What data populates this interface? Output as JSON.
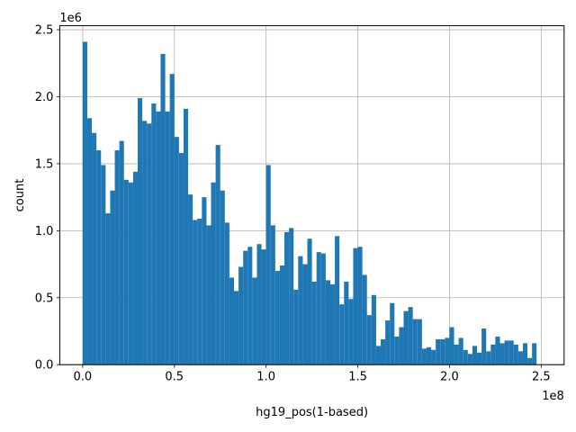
{
  "chart_data": {
    "type": "bar",
    "subtype": "histogram",
    "xlabel": "hg19_pos(1-based)",
    "ylabel": "count",
    "x_offset_label": "1e8",
    "y_offset_label": "1e6",
    "xlim": [
      -12500000,
      262500000
    ],
    "ylim": [
      0,
      2530000
    ],
    "grid": true,
    "bar_color": "#1f77b4",
    "bin_start": 0,
    "bin_width": 2500000,
    "xticks": [
      0,
      50000000,
      100000000,
      150000000,
      200000000,
      250000000
    ],
    "xtick_labels": [
      "0.0",
      "0.5",
      "1.0",
      "1.5",
      "2.0",
      "2.5"
    ],
    "yticks": [
      0,
      500000,
      1000000,
      1500000,
      2000000,
      2500000
    ],
    "ytick_labels": [
      "0.0",
      "0.5",
      "1.0",
      "1.5",
      "2.0",
      "2.5"
    ],
    "counts": [
      2410000,
      1840000,
      1730000,
      1600000,
      1490000,
      1130000,
      1300000,
      1600000,
      1670000,
      1380000,
      1360000,
      1440000,
      1990000,
      1820000,
      1800000,
      1950000,
      1890000,
      2320000,
      1890000,
      2170000,
      1700000,
      1580000,
      1910000,
      1270000,
      1080000,
      1090000,
      1250000,
      1040000,
      1360000,
      1640000,
      1300000,
      1060000,
      650000,
      550000,
      730000,
      850000,
      880000,
      650000,
      900000,
      860000,
      1490000,
      1040000,
      700000,
      740000,
      990000,
      1020000,
      560000,
      810000,
      750000,
      940000,
      620000,
      840000,
      830000,
      630000,
      600000,
      960000,
      450000,
      620000,
      490000,
      870000,
      880000,
      670000,
      370000,
      520000,
      140000,
      190000,
      330000,
      460000,
      210000,
      280000,
      400000,
      430000,
      340000,
      340000,
      120000,
      130000,
      110000,
      190000,
      190000,
      200000,
      280000,
      150000,
      200000,
      110000,
      80000,
      140000,
      90000,
      270000,
      100000,
      150000,
      210000,
      160000,
      180000,
      180000,
      150000,
      100000,
      160000,
      50000,
      160000
    ]
  }
}
